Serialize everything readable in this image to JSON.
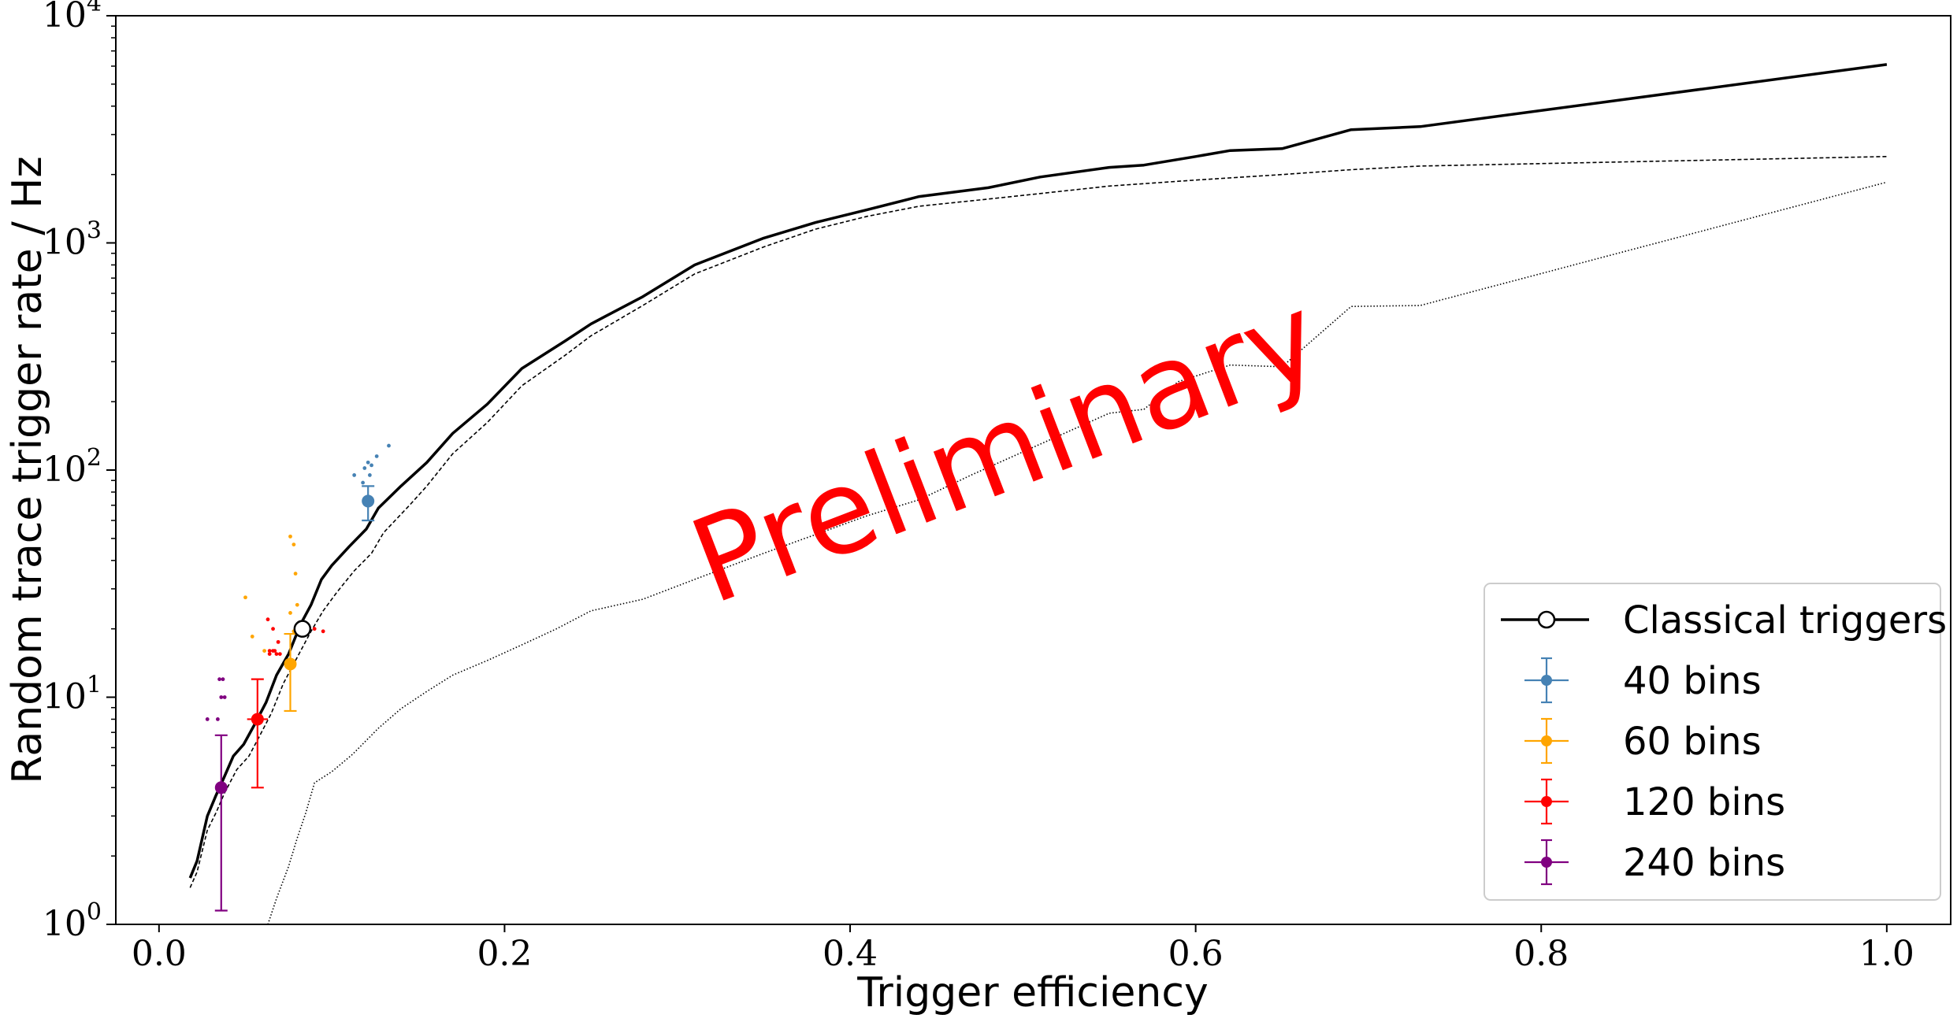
{
  "chart_data": {
    "type": "line",
    "xlabel": "Trigger efficiency",
    "ylabel": "Random trace trigger rate / Hz",
    "xlim": [
      -0.025,
      1.037
    ],
    "ylim": [
      1,
      10000
    ],
    "yscale": "log",
    "grid": false,
    "legend_position": "bottom-right",
    "watermark": "Preliminary",
    "watermark_color": "#ff0000",
    "x_ticks": [
      {
        "value": 0.0,
        "label": "0.0"
      },
      {
        "value": 0.2,
        "label": "0.2"
      },
      {
        "value": 0.4,
        "label": "0.4"
      },
      {
        "value": 0.6,
        "label": "0.6"
      },
      {
        "value": 0.8,
        "label": "0.8"
      },
      {
        "value": 1.0,
        "label": "1.0"
      }
    ],
    "y_ticks": [
      {
        "value": 1,
        "base": "10",
        "exp": "0"
      },
      {
        "value": 10,
        "base": "10",
        "exp": "1"
      },
      {
        "value": 100,
        "base": "10",
        "exp": "2"
      },
      {
        "value": 1000,
        "base": "10",
        "exp": "3"
      },
      {
        "value": 10000,
        "base": "10",
        "exp": "4"
      }
    ],
    "lines": [
      {
        "name": "Classical triggers",
        "style": "solid",
        "color": "#000000",
        "x": [
          0.018,
          0.022,
          0.028,
          0.033,
          0.038,
          0.043,
          0.049,
          0.055,
          0.062,
          0.068,
          0.075,
          0.082,
          0.088,
          0.094,
          0.1,
          0.11,
          0.12,
          0.127,
          0.14,
          0.155,
          0.17,
          0.19,
          0.21,
          0.235,
          0.25,
          0.28,
          0.31,
          0.35,
          0.38,
          0.41,
          0.44,
          0.48,
          0.51,
          0.55,
          0.57,
          0.6,
          0.62,
          0.65,
          0.69,
          0.73,
          1.0
        ],
        "y": [
          1.6,
          1.9,
          3.0,
          3.7,
          4.5,
          5.5,
          6.2,
          7.5,
          9.5,
          12.5,
          15.5,
          21.0,
          25.5,
          33.0,
          38.0,
          46.0,
          55.0,
          68.0,
          85.0,
          108.0,
          145.0,
          195.0,
          280.0,
          370.0,
          440.0,
          580.0,
          800.0,
          1050.0,
          1230.0,
          1400.0,
          1600.0,
          1750.0,
          1950.0,
          2150.0,
          2200.0,
          2400.0,
          2550.0,
          2600.0,
          3150.0,
          3250.0,
          6100.0
        ]
      },
      {
        "name": "",
        "style": "dashed",
        "color": "#000000",
        "x": [
          0.018,
          0.022,
          0.028,
          0.033,
          0.038,
          0.045,
          0.052,
          0.058,
          0.065,
          0.072,
          0.08,
          0.088,
          0.095,
          0.103,
          0.113,
          0.123,
          0.13,
          0.145,
          0.155,
          0.17,
          0.19,
          0.21,
          0.235,
          0.25,
          0.28,
          0.31,
          0.35,
          0.38,
          0.41,
          0.44,
          0.48,
          0.51,
          0.55,
          0.6,
          0.65,
          0.69,
          0.73,
          1.0
        ],
        "y": [
          1.45,
          1.7,
          2.6,
          3.1,
          3.8,
          4.8,
          5.5,
          6.7,
          8.5,
          11.5,
          15.0,
          19.5,
          24.0,
          29.0,
          36.0,
          43.0,
          53.0,
          70.0,
          85.0,
          118.0,
          162.0,
          235.0,
          320.0,
          390.0,
          530.0,
          730.0,
          960.0,
          1150.0,
          1310.0,
          1450.0,
          1560.0,
          1650.0,
          1780.0,
          1890.0,
          2000.0,
          2100.0,
          2180.0,
          2400.0
        ]
      },
      {
        "name": "",
        "style": "dotted",
        "color": "#000000",
        "x": [
          0.063,
          0.068,
          0.075,
          0.08,
          0.085,
          0.09,
          0.1,
          0.112,
          0.127,
          0.14,
          0.155,
          0.17,
          0.19,
          0.21,
          0.23,
          0.25,
          0.28,
          0.31,
          0.35,
          0.38,
          0.41,
          0.44,
          0.47,
          0.51,
          0.55,
          0.57,
          0.59,
          0.62,
          0.65,
          0.69,
          0.73,
          1.0
        ],
        "y": [
          1.0,
          1.3,
          1.8,
          2.4,
          3.1,
          4.2,
          4.7,
          5.6,
          7.3,
          8.9,
          10.6,
          12.5,
          14.5,
          17.0,
          20.0,
          24.0,
          27.0,
          33.0,
          43.0,
          52.0,
          63.0,
          74.0,
          95.0,
          130.0,
          178.0,
          185.0,
          245.0,
          290.0,
          285.0,
          525.0,
          530.0,
          1850.0
        ]
      }
    ],
    "classical_marker": {
      "x": 0.083,
      "y": 20.0
    },
    "legend": [
      {
        "label": "Classical triggers",
        "kind": "classical",
        "color": "#000000"
      },
      {
        "label": "40 bins",
        "kind": "errorbar",
        "color": "#4682b4"
      },
      {
        "label": "60 bins",
        "kind": "errorbar",
        "color": "#ffa500"
      },
      {
        "label": "120 bins",
        "kind": "errorbar",
        "color": "#ff0000"
      },
      {
        "label": "240 bins",
        "kind": "errorbar",
        "color": "#800080"
      }
    ],
    "points": [
      {
        "name": "40 bins",
        "color": "#4682b4",
        "x": 0.121,
        "y": 73.0,
        "yerr_low": 60.0,
        "yerr_high": 85.0,
        "xerr": 0.002
      },
      {
        "name": "60 bins",
        "color": "#ffa500",
        "x": 0.076,
        "y": 14.0,
        "yerr_low": 8.7,
        "yerr_high": 19.0,
        "xerr": 0.003
      },
      {
        "name": "120 bins",
        "color": "#ff0000",
        "x": 0.057,
        "y": 8.0,
        "yerr_low": 4.0,
        "yerr_high": 12.0,
        "xerr": 0.006
      },
      {
        "name": "240 bins",
        "color": "#800080",
        "x": 0.036,
        "y": 4.0,
        "yerr_low": 1.15,
        "yerr_high": 6.8,
        "xerr": 0.002
      }
    ],
    "scatter": [
      {
        "color": "#4682b4",
        "x": [
          0.113,
          0.118,
          0.119,
          0.121,
          0.122,
          0.123,
          0.126,
          0.133
        ],
        "y": [
          95,
          88,
          102,
          108,
          95,
          105,
          115,
          128
        ]
      },
      {
        "color": "#ffa500",
        "x": [
          0.05,
          0.054,
          0.061,
          0.076,
          0.078,
          0.079,
          0.08,
          0.078,
          0.076,
          0.079
        ],
        "y": [
          27.5,
          18.5,
          16.0,
          51.0,
          47.0,
          35.0,
          25.5,
          19.5,
          23.5,
          20.0
        ]
      },
      {
        "color": "#ff0000",
        "x": [
          0.063,
          0.066,
          0.069,
          0.066,
          0.064,
          0.067,
          0.064,
          0.068,
          0.07,
          0.09,
          0.095
        ],
        "y": [
          22.0,
          20.0,
          17.5,
          16.0,
          16.0,
          16.0,
          15.5,
          15.5,
          15.5,
          20.0,
          19.5
        ]
      },
      {
        "color": "#800080",
        "x": [
          0.028,
          0.034,
          0.036,
          0.038,
          0.037,
          0.035
        ],
        "y": [
          8.0,
          8.0,
          10.0,
          10.0,
          12.0,
          12.0
        ]
      }
    ]
  }
}
